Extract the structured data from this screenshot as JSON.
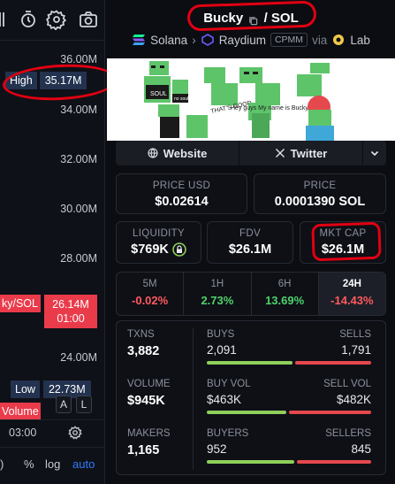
{
  "chart": {
    "y_labels": [
      "36.00M",
      "34.00M",
      "32.00M",
      "30.00M",
      "28.00M",
      "24.00M"
    ],
    "high_label": "High",
    "high_value": "35.17M",
    "pair_tag": "ky/SOL",
    "last_price": "26.14M",
    "countdown": "01:00",
    "low_label": "Low",
    "low_value": "22.73M",
    "volume_tag": "Volume",
    "auto_scale_button": "A",
    "log_button": "L",
    "time_label": "03:00",
    "bottom_bar": {
      "paren": ")",
      "percent": "%",
      "log": "log",
      "auto": "auto"
    }
  },
  "token": {
    "symbol": "Bucky",
    "quote": "/ SOL",
    "chain": "Solana",
    "dex": "Raydium",
    "pool_type": "CPMM",
    "via": "via",
    "launchpad": "Lab",
    "banner_text": [
      "SOUL",
      "no soul",
      "THAT'S GOOD",
      "Hey guys My name is Bucky"
    ]
  },
  "links": {
    "website": "Website",
    "twitter": "Twitter"
  },
  "stats": {
    "price_usd": {
      "label": "PRICE USD",
      "value": "$0.02614"
    },
    "price_sol": {
      "label": "PRICE",
      "value": "0.0001390 SOL"
    },
    "liquidity": {
      "label": "LIQUIDITY",
      "value": "$769K"
    },
    "fdv": {
      "label": "FDV",
      "value": "$26.1M"
    },
    "mkt_cap": {
      "label": "MKT CAP",
      "value": "$26.1M"
    }
  },
  "timeframes": [
    {
      "label": "5M",
      "value": "-0.02%",
      "dir": "neg"
    },
    {
      "label": "1H",
      "value": "2.73%",
      "dir": "pos"
    },
    {
      "label": "6H",
      "value": "13.69%",
      "dir": "pos"
    },
    {
      "label": "24H",
      "value": "-14.43%",
      "dir": "neg",
      "active": true
    }
  ],
  "metrics": {
    "txns": {
      "label": "TXNS",
      "value": "3,882"
    },
    "buys": {
      "label": "BUYS",
      "value": "2,091"
    },
    "sells": {
      "label": "SELLS",
      "value": "1,791"
    },
    "volume": {
      "label": "VOLUME",
      "value": "$945K"
    },
    "buy_vol": {
      "label": "BUY VOL",
      "value": "$463K"
    },
    "sell_vol": {
      "label": "SELL VOL",
      "value": "$482K"
    },
    "makers": {
      "label": "MAKERS",
      "value": "1,165"
    },
    "buyers": {
      "label": "BUYERS",
      "value": "952"
    },
    "sellers": {
      "label": "SELLERS",
      "value": "845"
    }
  },
  "colors": {
    "up": "#4fd16b",
    "down": "#ff5a5f",
    "annotation": "#e10012",
    "accent": "#2f7bff"
  }
}
